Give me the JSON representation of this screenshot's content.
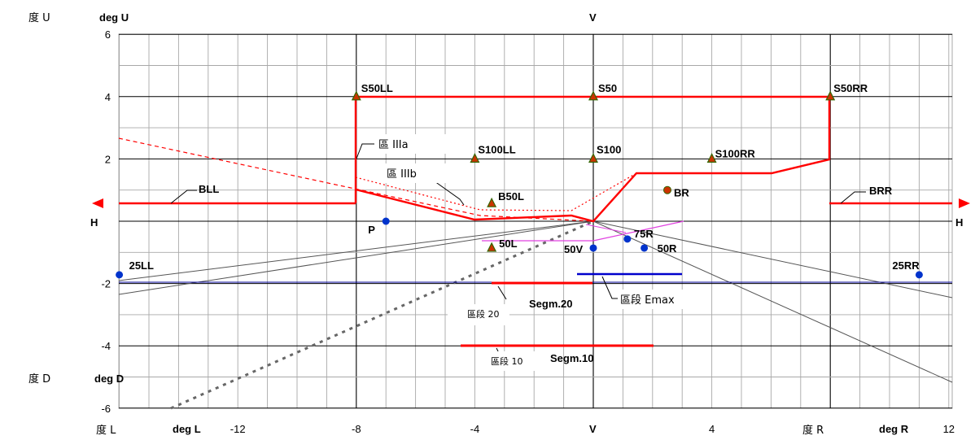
{
  "corner_labels": {
    "top_left_cjk": "度 U",
    "bottom_left_cjk": "度 D",
    "deg_u": "deg U",
    "deg_d": "deg D",
    "deg_l": "deg L",
    "deg_r": "deg R",
    "v_top": "V",
    "v_bottom": "V",
    "h_left": "H",
    "h_right": "H",
    "cjk_l": "度 L",
    "cjk_r": "度 R"
  },
  "x_ticks": [
    {
      "v": -12,
      "t": "-12"
    },
    {
      "v": -8,
      "t": "-8"
    },
    {
      "v": -4,
      "t": "-4"
    },
    {
      "v": 4,
      "t": "4"
    },
    {
      "v": 12,
      "t": "12"
    }
  ],
  "y_ticks": [
    {
      "v": 6,
      "t": "6"
    },
    {
      "v": 4,
      "t": "4"
    },
    {
      "v": 2,
      "t": "2"
    },
    {
      "v": -2,
      "t": "-2"
    },
    {
      "v": -4,
      "t": "-4"
    },
    {
      "v": -6,
      "t": "-6"
    }
  ],
  "test_points": [
    {
      "label": "S50LL",
      "x": -8,
      "y": 4,
      "kind": "triangle"
    },
    {
      "label": "S50",
      "x": 0,
      "y": 4,
      "kind": "triangle"
    },
    {
      "label": "S50RR",
      "x": 8,
      "y": 4,
      "kind": "triangle"
    },
    {
      "label": "S100LL",
      "x": -4,
      "y": 2,
      "kind": "triangle"
    },
    {
      "label": "S100",
      "x": 0,
      "y": 2,
      "kind": "triangle"
    },
    {
      "label": "S100RR",
      "x": 4,
      "y": 2,
      "kind": "triangle"
    },
    {
      "label": "B50L",
      "x": -3.43,
      "y": 0.57,
      "kind": "triangle"
    },
    {
      "label": "50L",
      "x": -3.43,
      "y": -0.86,
      "kind": "triangle"
    },
    {
      "label": "BR",
      "x": 2.5,
      "y": 1,
      "kind": "dot-red"
    },
    {
      "label": "P",
      "x": -7,
      "y": 0,
      "kind": "dot-blue"
    },
    {
      "label": "25LL",
      "x": -16,
      "y": -1.72,
      "kind": "dot-blue"
    },
    {
      "label": "25RR",
      "x": 11,
      "y": -1.72,
      "kind": "dot-blue"
    },
    {
      "label": "50V",
      "x": 0,
      "y": -0.86,
      "kind": "dot-blue"
    },
    {
      "label": "75R",
      "x": 1.15,
      "y": -0.57,
      "kind": "dot-blue"
    },
    {
      "label": "50R",
      "x": 1.72,
      "y": -0.86,
      "kind": "dot-blue"
    }
  ],
  "zone_labels": {
    "zone_IIIa": "區 IIIa",
    "zone_IIIb": "區 IIIb",
    "bll": "BLL",
    "brr": "BRR",
    "segm20": "Segm.20",
    "segm20_cjk": "區段 20",
    "segm10": "Segm.10",
    "segm10_cjk": "區段 10",
    "emax_cjk": "區段 Emax"
  },
  "colors": {
    "zone_line": "#ff0000",
    "segment_red": "#ff0000",
    "segment_blue": "#0000cc",
    "grid": "#a8a8a8",
    "grid_major": "#000000",
    "cutoff_grey": "#555555",
    "magenta": "#e040e0",
    "triangle_fill": "#cc3300",
    "triangle_edge": "#336600",
    "dot_blue": "#0033cc",
    "horizontal_blue": "#000099"
  }
}
